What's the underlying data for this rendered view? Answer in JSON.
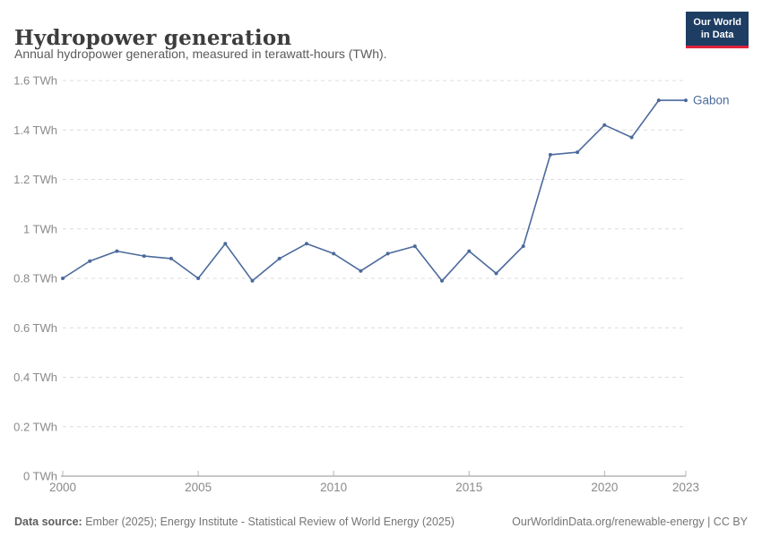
{
  "header": {
    "title": "Hydropower generation",
    "subtitle": "Annual hydropower generation, measured in terawatt-hours (TWh).",
    "logo": {
      "line1": "Our World",
      "line2": "in Data",
      "bg_color": "#1d3d63",
      "accent_color": "#e0233c"
    }
  },
  "chart_data": {
    "type": "line",
    "title": "Hydropower generation",
    "xlabel": "",
    "ylabel": "TWh",
    "ylim": [
      0,
      1.6
    ],
    "grid": "horizontal-dashed",
    "legend_position": "end-of-line",
    "x": [
      2000,
      2001,
      2002,
      2003,
      2004,
      2005,
      2006,
      2007,
      2008,
      2009,
      2010,
      2011,
      2012,
      2013,
      2014,
      2015,
      2016,
      2017,
      2018,
      2019,
      2020,
      2021,
      2022,
      2023
    ],
    "series": [
      {
        "name": "Gabon",
        "color": "#4c6a9c",
        "values": [
          0.8,
          0.87,
          0.91,
          0.89,
          0.88,
          0.8,
          0.94,
          0.79,
          0.88,
          0.94,
          0.9,
          0.83,
          0.9,
          0.93,
          0.79,
          0.91,
          0.82,
          0.93,
          1.3,
          1.31,
          1.42,
          1.37,
          1.52,
          1.52
        ]
      }
    ],
    "yticks": [
      0,
      0.2,
      0.4,
      0.6,
      0.8,
      1,
      1.2,
      1.4,
      1.6
    ],
    "ytick_labels": [
      "0 TWh",
      "0.2 TWh",
      "0.4 TWh",
      "0.6 TWh",
      "0.8 TWh",
      "1 TWh",
      "1.2 TWh",
      "1.4 TWh",
      "1.6 TWh"
    ],
    "xticks": [
      2000,
      2005,
      2010,
      2015,
      2020,
      2023
    ],
    "xtick_labels": [
      "2000",
      "2005",
      "2010",
      "2015",
      "2020",
      "2023"
    ],
    "colors": {
      "grid": "#dcdcdc",
      "axis": "#8f8f8f",
      "tick": "#b3b3b3",
      "tick_label": "#8a8a8a"
    }
  },
  "footer": {
    "source_label": "Data source:",
    "source_text": " Ember (2025); Energy Institute - Statistical Review of World Energy (2025)",
    "link_text": "OurWorldinData.org/renewable-energy | CC BY"
  }
}
